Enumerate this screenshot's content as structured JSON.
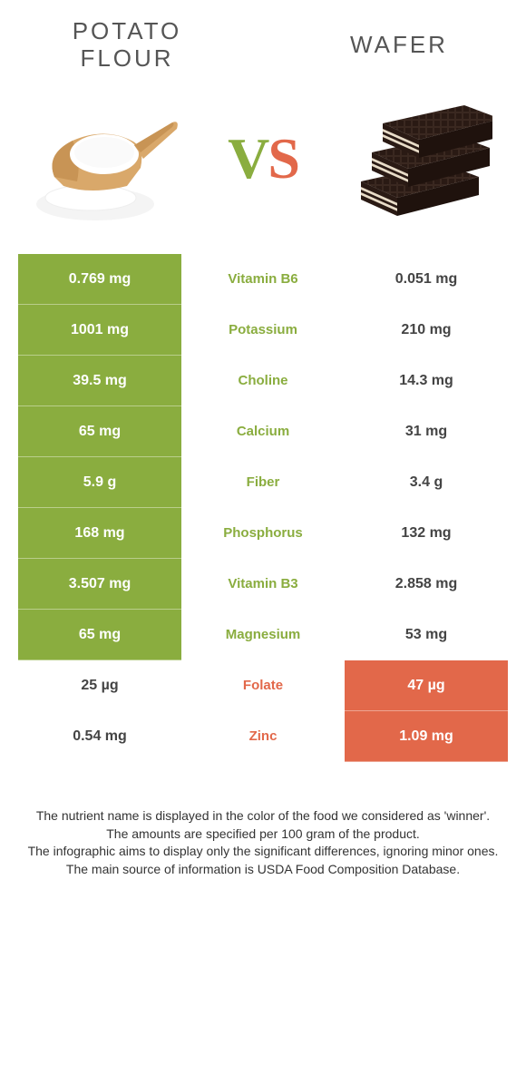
{
  "header": {
    "left_title": "Potato flour",
    "right_title": "Wafer",
    "vs_v": "V",
    "vs_s": "S"
  },
  "colors": {
    "green": "#8aad3f",
    "orange": "#e2684a",
    "white": "#ffffff",
    "text_gray": "#555555"
  },
  "table": {
    "rows": [
      {
        "nutrient": "Vitamin B6",
        "left": "0.769 mg",
        "right": "0.051 mg",
        "winner": "left"
      },
      {
        "nutrient": "Potassium",
        "left": "1001 mg",
        "right": "210 mg",
        "winner": "left"
      },
      {
        "nutrient": "Choline",
        "left": "39.5 mg",
        "right": "14.3 mg",
        "winner": "left"
      },
      {
        "nutrient": "Calcium",
        "left": "65 mg",
        "right": "31 mg",
        "winner": "left"
      },
      {
        "nutrient": "Fiber",
        "left": "5.9 g",
        "right": "3.4 g",
        "winner": "left"
      },
      {
        "nutrient": "Phosphorus",
        "left": "168 mg",
        "right": "132 mg",
        "winner": "left"
      },
      {
        "nutrient": "Vitamin B3",
        "left": "3.507 mg",
        "right": "2.858 mg",
        "winner": "left"
      },
      {
        "nutrient": "Magnesium",
        "left": "65 mg",
        "right": "53 mg",
        "winner": "left"
      },
      {
        "nutrient": "Folate",
        "left": "25 µg",
        "right": "47 µg",
        "winner": "right"
      },
      {
        "nutrient": "Zinc",
        "left": "0.54 mg",
        "right": "1.09 mg",
        "winner": "right"
      }
    ]
  },
  "footer": {
    "line1": "The nutrient name is displayed in the color of the food we considered as 'winner'.",
    "line2": "The amounts are specified per 100 gram of the product.",
    "line3": "The infographic aims to display only the significant differences, ignoring minor ones.",
    "line4": "The main source of information is USDA Food Composition Database."
  }
}
